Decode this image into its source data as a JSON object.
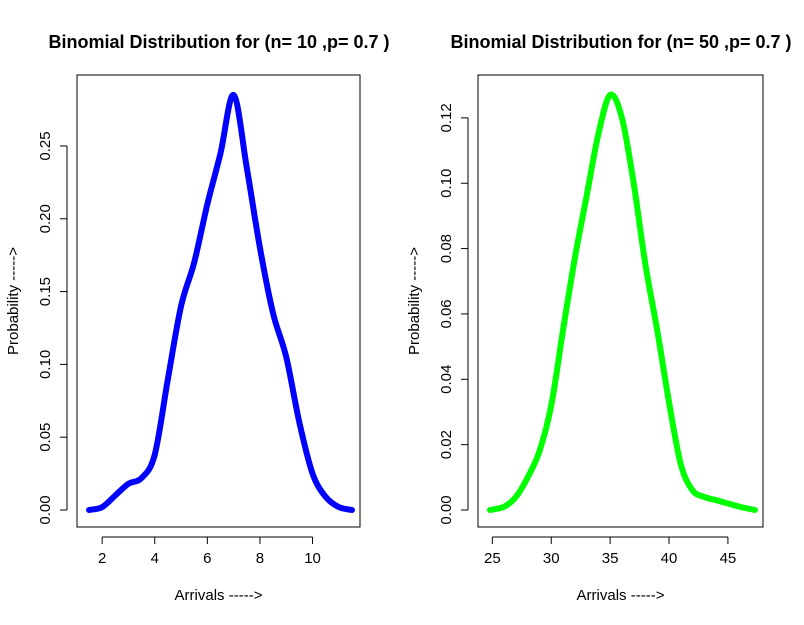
{
  "chart_data": [
    {
      "type": "line",
      "title": "Binomial Distribution for (n= 10 ,p= 0.7 )",
      "xlabel": "Arrivals ----->",
      "ylabel": "Probability ----->",
      "xlim": [
        1.5,
        11.5
      ],
      "ylim": [
        0,
        0.285
      ],
      "xticks": [
        2,
        4,
        6,
        8,
        10
      ],
      "yticks": [
        0.0,
        0.05,
        0.1,
        0.15,
        0.2,
        0.25
      ],
      "ytick_labels": [
        "0.00",
        "0.05",
        "0.10",
        "0.15",
        "0.20",
        "0.25"
      ],
      "color": "#0000ff",
      "series": [
        {
          "x": [
            1.5,
            2.0,
            2.5,
            3.0,
            3.5,
            4.0,
            4.5,
            5.0,
            5.5,
            6.0,
            6.5,
            7.0,
            7.5,
            8.0,
            8.5,
            9.0,
            9.5,
            10.0,
            10.5,
            11.0,
            11.5
          ],
          "values": [
            0.0,
            0.002,
            0.01,
            0.018,
            0.022,
            0.038,
            0.09,
            0.14,
            0.17,
            0.21,
            0.245,
            0.285,
            0.235,
            0.18,
            0.135,
            0.105,
            0.06,
            0.025,
            0.009,
            0.002,
            0.0
          ]
        }
      ]
    },
    {
      "type": "line",
      "title": "Binomial Distribution for (n= 50 ,p= 0.7 )",
      "xlabel": "Arrivals ----->",
      "ylabel": "Probability ----->",
      "xlim": [
        24.8,
        47.3
      ],
      "ylim": [
        0,
        0.127
      ],
      "xticks": [
        25,
        30,
        35,
        40,
        45
      ],
      "yticks": [
        0.0,
        0.02,
        0.04,
        0.06,
        0.08,
        0.1,
        0.12
      ],
      "ytick_labels": [
        "0.00",
        "0.02",
        "0.04",
        "0.06",
        "0.08",
        "0.10",
        "0.12"
      ],
      "color": "#00ff00",
      "series": [
        {
          "x": [
            24.8,
            26,
            27,
            28,
            29,
            30,
            31,
            32,
            33,
            34,
            35,
            36,
            37,
            38,
            39,
            40,
            41,
            42,
            43,
            44,
            45,
            46,
            47.3
          ],
          "values": [
            0.0,
            0.001,
            0.004,
            0.01,
            0.018,
            0.032,
            0.055,
            0.077,
            0.096,
            0.115,
            0.127,
            0.12,
            0.1,
            0.075,
            0.055,
            0.033,
            0.014,
            0.006,
            0.004,
            0.003,
            0.002,
            0.001,
            0.0
          ]
        }
      ]
    }
  ]
}
